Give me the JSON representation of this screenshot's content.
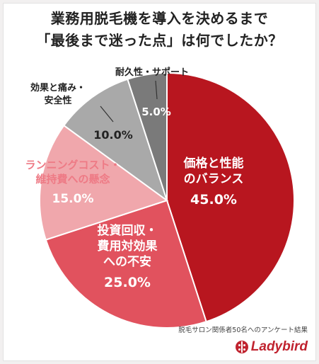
{
  "title": {
    "line1": "業務用脱毛機を導入を決めるまで",
    "line2": "「最後まで迷った点」は何でしたか？"
  },
  "chart_data": {
    "type": "pie",
    "title": "業務用脱毛機を導入を決めるまで「最後まで迷った点」は何でしたか？",
    "slices": [
      {
        "label": "価格と性能のバランス",
        "label_lines": [
          "価格と性能",
          "のバランス"
        ],
        "value": 45.0,
        "display": "45.0%",
        "color": "#b8161f"
      },
      {
        "label": "投資回収・費用対効果への不安",
        "label_lines": [
          "投資回収・",
          "費用対効果",
          "への不安"
        ],
        "value": 25.0,
        "display": "25.0%",
        "color": "#e1525e"
      },
      {
        "label": "ランニングコスト・維持費への懸念",
        "label_lines": [
          "ランニングコスト・",
          "維持費への懸念"
        ],
        "value": 15.0,
        "display": "15.0%",
        "color": "#f0a7ac"
      },
      {
        "label": "効果と痛み・安全性",
        "label_lines": [
          "効果と痛み・",
          "安全性"
        ],
        "value": 10.0,
        "display": "10.0%",
        "color": "#a9a9a9"
      },
      {
        "label": "耐久性・サポート",
        "label_lines": [
          "耐久性・サポート"
        ],
        "value": 5.0,
        "display": "5.0%",
        "color": "#7a7a7a"
      }
    ]
  },
  "source_note": "脱毛サロン関係者50名へのアンケート結果",
  "logo": {
    "text": "Ladybird",
    "color": "#c0232f"
  }
}
